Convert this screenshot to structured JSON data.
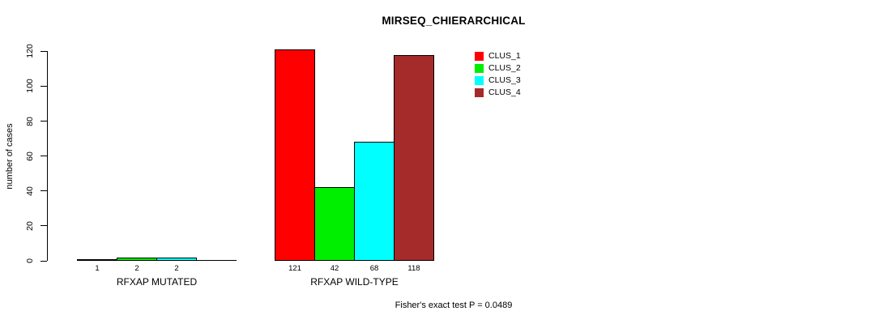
{
  "header": {
    "title": "MIRSEQ_CHIERARCHICAL"
  },
  "chart_data": {
    "type": "bar",
    "title": "MIRSEQ_CHIERARCHICAL",
    "xlabel": "",
    "ylabel": "number of cases",
    "ylim": [
      0,
      120
    ],
    "yticks": [
      0,
      20,
      40,
      60,
      80,
      100,
      120
    ],
    "grid": false,
    "legend_position": "top-right",
    "categories": [
      "RFXAP MUTATED",
      "RFXAP WILD-TYPE"
    ],
    "series": [
      {
        "name": "CLUS_1",
        "color": "#FF0000",
        "values": [
          1,
          121
        ]
      },
      {
        "name": "CLUS_2",
        "color": "#00EE00",
        "values": [
          2,
          42
        ]
      },
      {
        "name": "CLUS_3",
        "color": "#00FFFF",
        "values": [
          2,
          68
        ]
      },
      {
        "name": "CLUS_4",
        "color": "#A52A2A",
        "values": [
          0,
          118
        ]
      }
    ],
    "bar_labels": [
      [
        "1",
        "2",
        "2",
        ""
      ],
      [
        "121",
        "42",
        "68",
        "118"
      ]
    ],
    "annotation": "Fisher's exact test P = 0.0489"
  }
}
